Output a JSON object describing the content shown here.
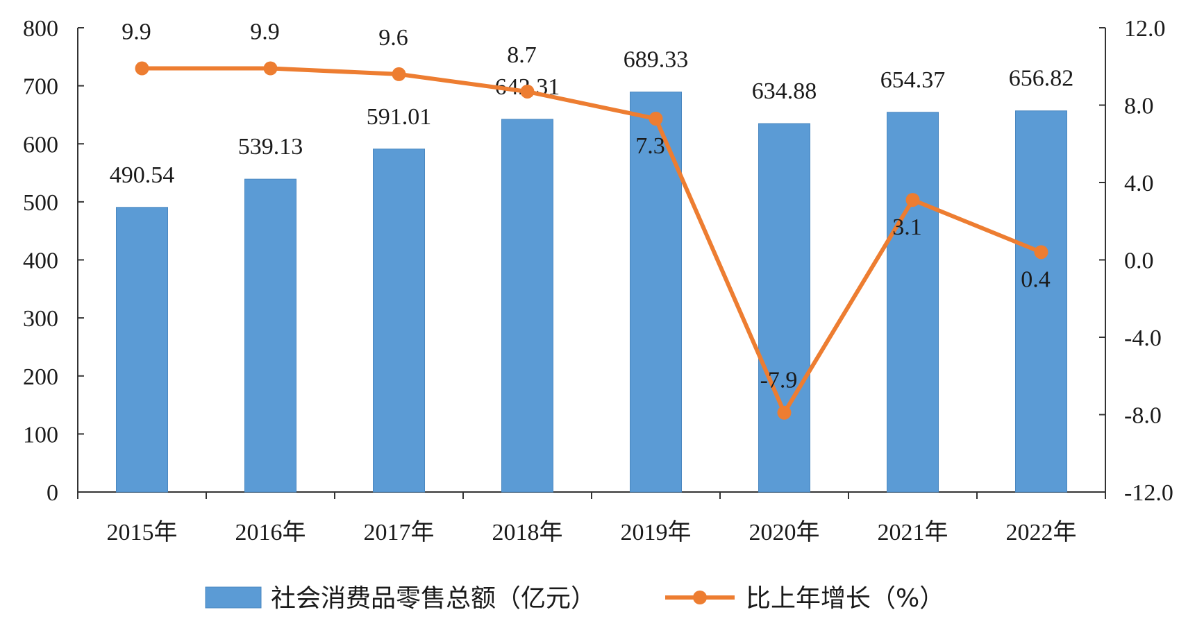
{
  "chart_data": {
    "type": "bar",
    "categories": [
      "2015年",
      "2016年",
      "2017年",
      "2018年",
      "2019年",
      "2020年",
      "2021年",
      "2022年"
    ],
    "series": [
      {
        "name": "社会消费品零售总额（亿元）",
        "type": "bar",
        "axis": "left",
        "values": [
          490.54,
          539.13,
          591.01,
          642.31,
          689.33,
          634.88,
          654.37,
          656.82
        ],
        "labels": [
          "490.54",
          "539.13",
          "591.01",
          "642.31",
          "689.33",
          "634.88",
          "654.37",
          "656.82"
        ]
      },
      {
        "name": "比上年增长（%）",
        "type": "line",
        "axis": "right",
        "values": [
          9.9,
          9.9,
          9.6,
          8.7,
          7.3,
          -7.9,
          3.1,
          0.4
        ],
        "labels": [
          "9.9",
          "9.9",
          "9.6",
          "8.7",
          "7.3",
          "-7.9",
          "3.1",
          "0.4"
        ]
      }
    ],
    "y_left": {
      "min": 0,
      "max": 800,
      "step": 100,
      "ticks": [
        "0",
        "100",
        "200",
        "300",
        "400",
        "500",
        "600",
        "700",
        "800"
      ]
    },
    "y_right": {
      "min": -12,
      "max": 12,
      "step": 4,
      "ticks": [
        "-12.0",
        "-8.0",
        "-4.0",
        "0.0",
        "4.0",
        "8.0",
        "12.0"
      ]
    },
    "grid": false,
    "legend_position": "bottom",
    "colors": {
      "bar": "#5b9bd5",
      "bar_edge": "#4a87c0",
      "line": "#ed7d31",
      "axis": "#333333"
    }
  }
}
